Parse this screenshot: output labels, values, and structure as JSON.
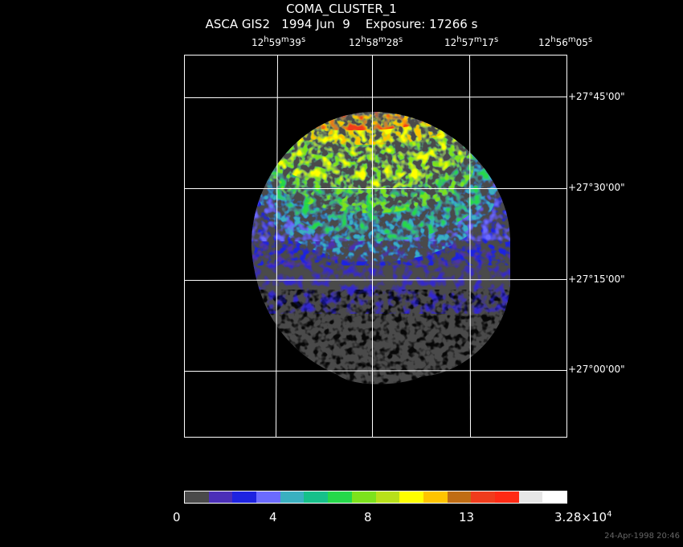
{
  "header": {
    "title": "COMA_CLUSTER_1",
    "subtitle": "ASCA GIS2   1994 Jun  9    Exposure: 17266 s"
  },
  "ra_labels": [
    "12h59m39s",
    "12h58m28s",
    "12h57m17s",
    "12h56m05s"
  ],
  "dec_labels": [
    "+27°45'00\"",
    "+27°30'00\"",
    "+27°15'00\"",
    "+27°00'00\""
  ],
  "colorbar": {
    "tick_labels": [
      "0",
      "4",
      "8",
      "13",
      "3.28×10^4"
    ],
    "colors": [
      "#4a4a4a",
      "#4b2fb8",
      "#1e23e0",
      "#6b6bff",
      "#3ab0c0",
      "#16c08a",
      "#25d84a",
      "#7ce21c",
      "#b8e01a",
      "#ffff00",
      "#ffc400",
      "#c06d14",
      "#f03c1c",
      "#ff2a14",
      "#e6e6e6",
      "#ffffff"
    ]
  },
  "timestamp": "24-Apr-1998 20:46"
}
